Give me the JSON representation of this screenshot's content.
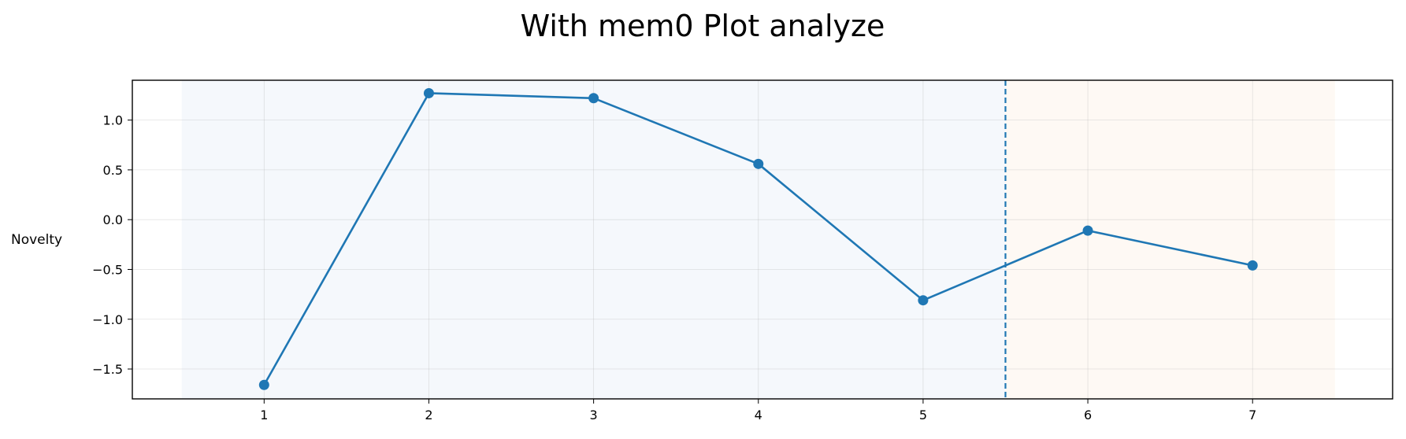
{
  "chart_data": {
    "type": "line",
    "title": "With mem0 Plot analyze",
    "xlabel": "",
    "ylabel": "Novelty",
    "x": [
      1,
      2,
      3,
      4,
      5,
      6,
      7
    ],
    "series": [
      {
        "values": [
          -1.66,
          1.27,
          1.22,
          0.56,
          -0.81,
          -0.11,
          -0.46
        ],
        "color": "#1f77b4"
      }
    ],
    "xlim": [
      0.2,
      7.85
    ],
    "ylim": [
      -1.8,
      1.4
    ],
    "xticks": [
      "1",
      "2",
      "3",
      "4",
      "5",
      "6",
      "7"
    ],
    "yticks": [
      {
        "value": 1.0,
        "label": "1.0"
      },
      {
        "value": 0.5,
        "label": "0.5"
      },
      {
        "value": 0.0,
        "label": "0.0"
      },
      {
        "value": -0.5,
        "label": "−0.5"
      },
      {
        "value": -1.0,
        "label": "−1.0"
      },
      {
        "value": -1.5,
        "label": "−1.5"
      }
    ],
    "grid": true,
    "shaded_regions": [
      {
        "from": 0.5,
        "to": 5.5,
        "color": "#f5f8fc"
      },
      {
        "from": 5.5,
        "to": 7.5,
        "color": "#fef9f4"
      }
    ],
    "vline": {
      "x": 5.5,
      "style": "dashed",
      "color": "#1f77b4"
    }
  }
}
